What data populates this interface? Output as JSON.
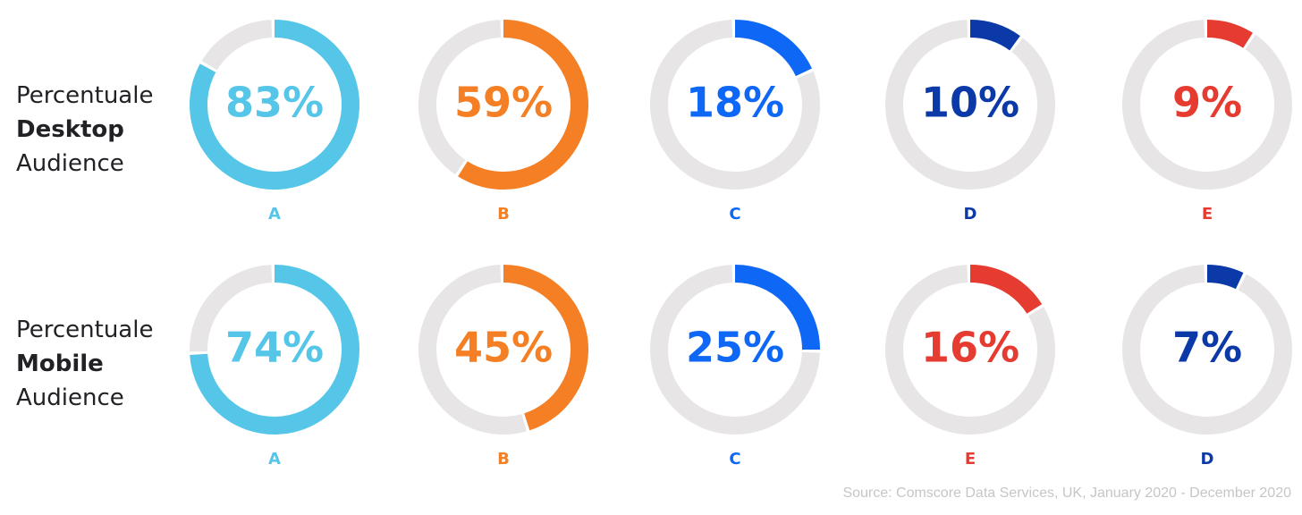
{
  "rows": [
    {
      "label": {
        "line1": "Percentuale",
        "line2": "Desktop",
        "line3": "Audience"
      },
      "items": [
        {
          "name": "A",
          "value": 83,
          "text": "83%",
          "color": "#55c6e8"
        },
        {
          "name": "B",
          "value": 59,
          "text": "59%",
          "color": "#f47f24"
        },
        {
          "name": "C",
          "value": 18,
          "text": "18%",
          "color": "#0f67f5"
        },
        {
          "name": "D",
          "value": 10,
          "text": "10%",
          "color": "#0b3aa8"
        },
        {
          "name": "E",
          "value": 9,
          "text": "9%",
          "color": "#e53b30"
        }
      ]
    },
    {
      "label": {
        "line1": "Percentuale",
        "line2": "Mobile",
        "line3": "Audience"
      },
      "items": [
        {
          "name": "A",
          "value": 74,
          "text": "74%",
          "color": "#55c6e8"
        },
        {
          "name": "B",
          "value": 45,
          "text": "45%",
          "color": "#f47f24"
        },
        {
          "name": "C",
          "value": 25,
          "text": "25%",
          "color": "#0f67f5"
        },
        {
          "name": "E",
          "value": 16,
          "text": "16%",
          "color": "#e53b30"
        },
        {
          "name": "D",
          "value": 7,
          "text": "7%",
          "color": "#0b3aa8"
        }
      ]
    }
  ],
  "track_color": "#e7e5e6",
  "source": "Source: Comscore Data Services, UK, January 2020 - December 2020",
  "chart_data": [
    {
      "type": "pie",
      "categories": [
        "A",
        "B",
        "C",
        "D",
        "E"
      ],
      "values": [
        83,
        59,
        18,
        10,
        9
      ],
      "title": "Percentuale Desktop Audience",
      "unit": "%"
    },
    {
      "type": "pie",
      "categories": [
        "A",
        "B",
        "C",
        "E",
        "D"
      ],
      "values": [
        74,
        45,
        25,
        16,
        7
      ],
      "title": "Percentuale Mobile Audience",
      "unit": "%"
    }
  ]
}
